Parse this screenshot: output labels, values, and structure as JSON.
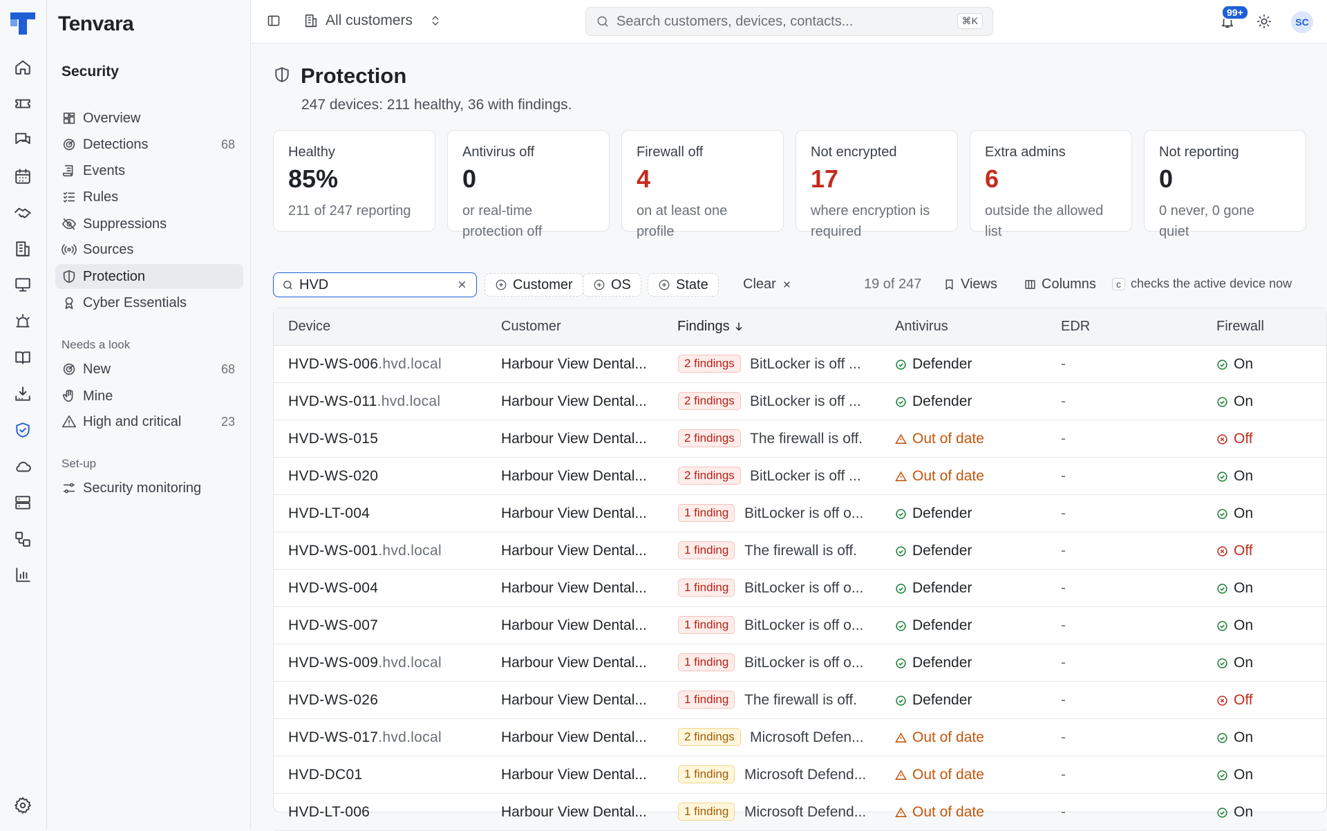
{
  "app": {
    "brand": "Tenvara"
  },
  "topbar": {
    "scope_label": "All customers",
    "search_placeholder": "Search customers, devices, contacts...",
    "search_shortcut": "⌘K",
    "notif_badge": "99+",
    "avatar_initials": "SC"
  },
  "sidebar": {
    "section_title": "Security",
    "items": [
      {
        "label": "Overview",
        "count": ""
      },
      {
        "label": "Detections",
        "count": "68"
      },
      {
        "label": "Events",
        "count": ""
      },
      {
        "label": "Rules",
        "count": ""
      },
      {
        "label": "Suppressions",
        "count": ""
      },
      {
        "label": "Sources",
        "count": ""
      },
      {
        "label": "Protection",
        "count": ""
      },
      {
        "label": "Cyber Essentials",
        "count": ""
      }
    ],
    "group_needs": "Needs a look",
    "needs_items": [
      {
        "label": "New",
        "count": "68"
      },
      {
        "label": "Mine",
        "count": ""
      },
      {
        "label": "High and critical",
        "count": "23"
      }
    ],
    "group_setup": "Set-up",
    "setup_items": [
      {
        "label": "Security monitoring"
      }
    ]
  },
  "page": {
    "title": "Protection",
    "subtitle": "247 devices: 211 healthy, 36 with findings."
  },
  "cards": [
    {
      "label": "Healthy",
      "value": "85%",
      "desc1": "211 of 247 reporting",
      "desc2": "",
      "value_color": "#1f2328"
    },
    {
      "label": "Antivirus off",
      "value": "0",
      "desc1": "or real-time",
      "desc2": "protection off",
      "value_color": "#1f2328"
    },
    {
      "label": "Firewall off",
      "value": "4",
      "desc1": "on at least one",
      "desc2": "profile",
      "value_color": "#c42b1c"
    },
    {
      "label": "Not encrypted",
      "value": "17",
      "desc1": "where encryption is",
      "desc2": "required",
      "value_color": "#c42b1c"
    },
    {
      "label": "Extra admins",
      "value": "6",
      "desc1": "outside the allowed",
      "desc2": "list",
      "value_color": "#c42b1c"
    },
    {
      "label": "Not reporting",
      "value": "0",
      "desc1": "0 never, 0 gone",
      "desc2": "quiet",
      "value_color": "#1f2328"
    }
  ],
  "filters": {
    "search_value": "HVD",
    "chip_customer": "Customer",
    "chip_os": "OS",
    "chip_state": "State",
    "clear": "Clear",
    "count": "19 of 247",
    "views": "Views",
    "columns": "Columns",
    "key_hint": "c",
    "hint_text": "checks the active device now"
  },
  "table": {
    "headers": {
      "device": "Device",
      "customer": "Customer",
      "findings": "Findings",
      "antivirus": "Antivirus",
      "edr": "EDR",
      "firewall": "Firewall"
    },
    "rows": [
      {
        "device": "HVD-WS-006",
        "domain": ".hvd.local",
        "customer": "Harbour View Dental...",
        "findings": "2 findings",
        "sev": "red",
        "finding_text": "BitLocker is off ...",
        "av": "Defender",
        "av_state": "ok",
        "edr": "-",
        "fw": "On",
        "fw_state": "ok"
      },
      {
        "device": "HVD-WS-011",
        "domain": ".hvd.local",
        "customer": "Harbour View Dental...",
        "findings": "2 findings",
        "sev": "red",
        "finding_text": "BitLocker is off ...",
        "av": "Defender",
        "av_state": "ok",
        "edr": "-",
        "fw": "On",
        "fw_state": "ok"
      },
      {
        "device": "HVD-WS-015",
        "domain": "",
        "customer": "Harbour View Dental...",
        "findings": "2 findings",
        "sev": "red",
        "finding_text": "The firewall is off.",
        "av": "Out of date",
        "av_state": "warn",
        "edr": "-",
        "fw": "Off",
        "fw_state": "bad"
      },
      {
        "device": "HVD-WS-020",
        "domain": "",
        "customer": "Harbour View Dental...",
        "findings": "2 findings",
        "sev": "red",
        "finding_text": "BitLocker is off ...",
        "av": "Out of date",
        "av_state": "warn",
        "edr": "-",
        "fw": "On",
        "fw_state": "ok"
      },
      {
        "device": "HVD-LT-004",
        "domain": "",
        "customer": "Harbour View Dental...",
        "findings": "1 finding",
        "sev": "red",
        "finding_text": "BitLocker is off o...",
        "av": "Defender",
        "av_state": "ok",
        "edr": "-",
        "fw": "On",
        "fw_state": "ok"
      },
      {
        "device": "HVD-WS-001",
        "domain": ".hvd.local",
        "customer": "Harbour View Dental...",
        "findings": "1 finding",
        "sev": "red",
        "finding_text": "The firewall is off.",
        "av": "Defender",
        "av_state": "ok",
        "edr": "-",
        "fw": "Off",
        "fw_state": "bad"
      },
      {
        "device": "HVD-WS-004",
        "domain": "",
        "customer": "Harbour View Dental...",
        "findings": "1 finding",
        "sev": "red",
        "finding_text": "BitLocker is off o...",
        "av": "Defender",
        "av_state": "ok",
        "edr": "-",
        "fw": "On",
        "fw_state": "ok"
      },
      {
        "device": "HVD-WS-007",
        "domain": "",
        "customer": "Harbour View Dental...",
        "findings": "1 finding",
        "sev": "red",
        "finding_text": "BitLocker is off o...",
        "av": "Defender",
        "av_state": "ok",
        "edr": "-",
        "fw": "On",
        "fw_state": "ok"
      },
      {
        "device": "HVD-WS-009",
        "domain": ".hvd.local",
        "customer": "Harbour View Dental...",
        "findings": "1 finding",
        "sev": "red",
        "finding_text": "BitLocker is off o...",
        "av": "Defender",
        "av_state": "ok",
        "edr": "-",
        "fw": "On",
        "fw_state": "ok"
      },
      {
        "device": "HVD-WS-026",
        "domain": "",
        "customer": "Harbour View Dental...",
        "findings": "1 finding",
        "sev": "red",
        "finding_text": "The firewall is off.",
        "av": "Defender",
        "av_state": "ok",
        "edr": "-",
        "fw": "Off",
        "fw_state": "bad"
      },
      {
        "device": "HVD-WS-017",
        "domain": ".hvd.local",
        "customer": "Harbour View Dental...",
        "findings": "2 findings",
        "sev": "yel",
        "finding_text": "Microsoft Defen...",
        "av": "Out of date",
        "av_state": "warn",
        "edr": "-",
        "fw": "On",
        "fw_state": "ok"
      },
      {
        "device": "HVD-DC01",
        "domain": "",
        "customer": "Harbour View Dental...",
        "findings": "1 finding",
        "sev": "yel",
        "finding_text": "Microsoft Defend...",
        "av": "Out of date",
        "av_state": "warn",
        "edr": "-",
        "fw": "On",
        "fw_state": "ok"
      },
      {
        "device": "HVD-LT-006",
        "domain": "",
        "customer": "Harbour View Dental...",
        "findings": "1 finding",
        "sev": "yel",
        "finding_text": "Microsoft Defend...",
        "av": "Out of date",
        "av_state": "warn",
        "edr": "-",
        "fw": "On",
        "fw_state": "ok"
      }
    ]
  },
  "icons": {
    "rail": [
      "home-icon",
      "ticket-icon",
      "chat-icon",
      "calendar-icon",
      "handshake-icon",
      "building-icon",
      "monitor-icon",
      "alarm-icon",
      "book-icon",
      "download-tray-icon",
      "shield-check-icon",
      "cloud-icon",
      "server-icon",
      "workflow-icon",
      "bar-chart-icon",
      "settings-icon"
    ]
  }
}
